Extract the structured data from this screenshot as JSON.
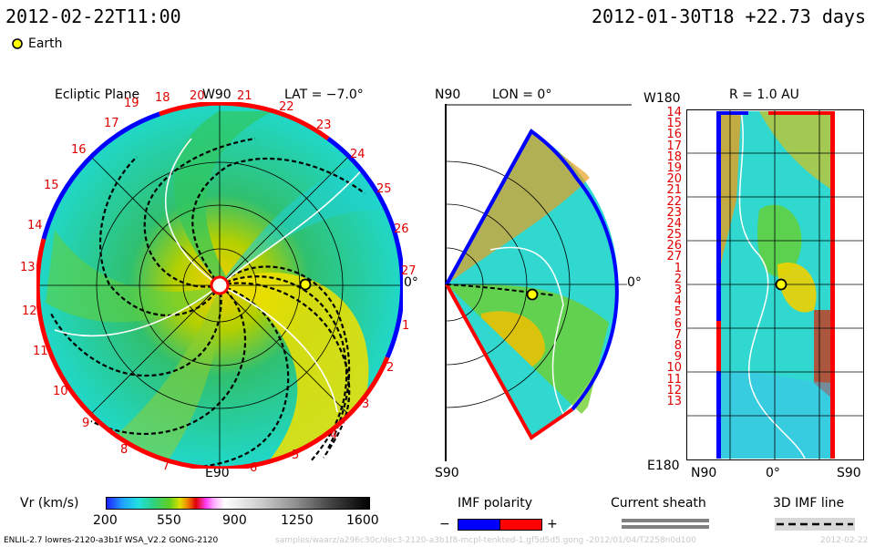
{
  "header": {
    "left_datetime": "2012-02-22T11:00",
    "right_datetime": "2012-01-30T18 +22.73 days"
  },
  "legend": {
    "earth_label": "Earth"
  },
  "ecliptic_panel": {
    "title": "Ecliptic Plane",
    "lat_label": "LAT = −7.0°",
    "top_label": "W90",
    "bottom_label": "E90",
    "right_label": "0°",
    "carrington_labels": [
      "19",
      "20",
      "21",
      "22",
      "23",
      "24",
      "25",
      "26",
      "27",
      "1",
      "2",
      "3",
      "4",
      "5",
      "6",
      "7",
      "8",
      "9",
      "10",
      "11",
      "12",
      "13",
      "14",
      "15",
      "16",
      "17",
      "18"
    ]
  },
  "meridional_panel": {
    "top_label": "N90",
    "lon_label": "LON = 0°",
    "bottom_label": "S90",
    "right_label": "0°"
  },
  "radial_panel": {
    "top_left_label": "W180",
    "r_label": "R = 1.0 AU",
    "bottom_left_label": "E180",
    "bottom_labels": [
      "N90",
      "0°",
      "S90"
    ],
    "y_labels": [
      "14",
      "15",
      "16",
      "17",
      "18",
      "19",
      "20",
      "21",
      "22",
      "23",
      "24",
      "25",
      "26",
      "27",
      "1",
      "2",
      "3",
      "4",
      "5",
      "6",
      "7",
      "8",
      "9",
      "10",
      "11",
      "12",
      "13"
    ]
  },
  "colorbar": {
    "label": "Vr (km/s)",
    "ticks": [
      "200",
      "550",
      "900",
      "1250",
      "1600"
    ]
  },
  "imf_legend": {
    "title": "IMF polarity",
    "minus": "−",
    "plus": "+",
    "negative_color": "#0000ff",
    "positive_color": "#ff0000"
  },
  "current_sheath": {
    "title": "Current sheath"
  },
  "imf_line": {
    "title": "3D IMF line"
  },
  "footer": {
    "model": "ENLIL-2.7 lowres-2120-a3b1f WSA_V2.2 GONG-2120",
    "path": "samples/waarz/a296c30c/dec3-2120-a3b1f8-mcpl-tenkted-1.gf5d5d5.gong -2012/01/04/T2258n0d100",
    "date": "2012-02-22"
  }
}
